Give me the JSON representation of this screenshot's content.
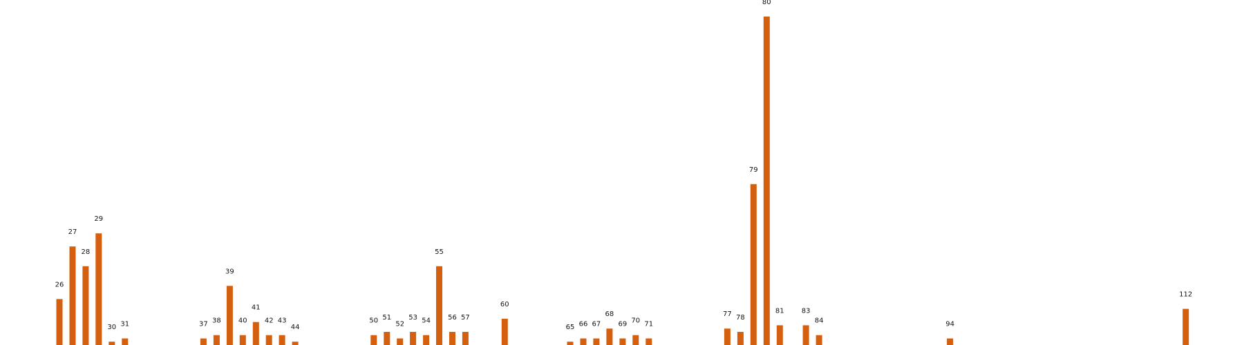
{
  "chart_data": {
    "type": "bar",
    "title": "",
    "xlabel": "",
    "ylabel": "",
    "bar_color": "#D45F0E",
    "axes_visible": false,
    "grid": false,
    "ylim": [
      0,
      100
    ],
    "xlim": [
      22,
      116
    ],
    "points": [
      {
        "x": 26,
        "value": 14
      },
      {
        "x": 27,
        "value": 30
      },
      {
        "x": 28,
        "value": 24
      },
      {
        "x": 29,
        "value": 34
      },
      {
        "x": 30,
        "value": 1
      },
      {
        "x": 31,
        "value": 2
      },
      {
        "x": 37,
        "value": 2
      },
      {
        "x": 38,
        "value": 3
      },
      {
        "x": 39,
        "value": 18
      },
      {
        "x": 40,
        "value": 3
      },
      {
        "x": 41,
        "value": 7
      },
      {
        "x": 42,
        "value": 3
      },
      {
        "x": 43,
        "value": 3
      },
      {
        "x": 44,
        "value": 1
      },
      {
        "x": 50,
        "value": 3
      },
      {
        "x": 51,
        "value": 4
      },
      {
        "x": 52,
        "value": 2
      },
      {
        "x": 53,
        "value": 4
      },
      {
        "x": 54,
        "value": 3
      },
      {
        "x": 55,
        "value": 24
      },
      {
        "x": 56,
        "value": 4
      },
      {
        "x": 57,
        "value": 4
      },
      {
        "x": 60,
        "value": 8
      },
      {
        "x": 65,
        "value": 1
      },
      {
        "x": 66,
        "value": 2
      },
      {
        "x": 67,
        "value": 2
      },
      {
        "x": 68,
        "value": 5
      },
      {
        "x": 69,
        "value": 2
      },
      {
        "x": 70,
        "value": 3
      },
      {
        "x": 71,
        "value": 2
      },
      {
        "x": 77,
        "value": 5
      },
      {
        "x": 78,
        "value": 4
      },
      {
        "x": 79,
        "value": 49
      },
      {
        "x": 80,
        "value": 100
      },
      {
        "x": 81,
        "value": 6
      },
      {
        "x": 83,
        "value": 6
      },
      {
        "x": 84,
        "value": 3
      },
      {
        "x": 94,
        "value": 2
      },
      {
        "x": 112,
        "value": 11
      }
    ]
  }
}
